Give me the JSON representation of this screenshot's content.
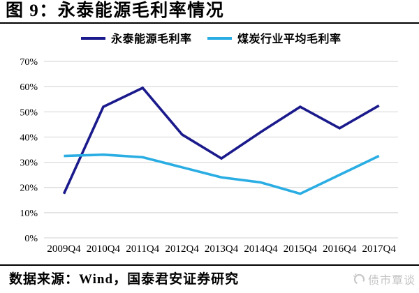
{
  "header": {
    "title": "图 9：永泰能源毛利率情况"
  },
  "chart_data": {
    "type": "line",
    "title": "永泰能源毛利率情况",
    "categories": [
      "2009Q4",
      "2010Q4",
      "2011Q4",
      "2012Q4",
      "2013Q4",
      "2014Q4",
      "2015Q4",
      "2016Q4",
      "2017Q4"
    ],
    "series": [
      {
        "name": "永泰能源毛利率",
        "color": "#1a1a8c",
        "values": [
          17.5,
          52,
          59.5,
          41,
          31.5,
          42,
          52,
          43.5,
          52.5
        ]
      },
      {
        "name": "煤炭行业平均毛利率",
        "color": "#29ade3",
        "values": [
          32.5,
          33,
          32,
          28,
          24,
          22,
          17.5,
          25,
          32.5
        ]
      }
    ],
    "xlabel": "",
    "ylabel": "",
    "ylim": [
      0,
      70
    ],
    "ytick_step": 10,
    "yticks": [
      "0%",
      "10%",
      "20%",
      "30%",
      "40%",
      "50%",
      "60%",
      "70%"
    ],
    "grid": "horizontal",
    "gridline_color": "#d9d9d9",
    "legend_position": "top"
  },
  "footer": {
    "source": "数据来源：Wind，国泰君安证券研究"
  },
  "watermark": {
    "label": "债市覃谈",
    "icon": "ring-logo-icon",
    "color": "#c3c3c3"
  }
}
